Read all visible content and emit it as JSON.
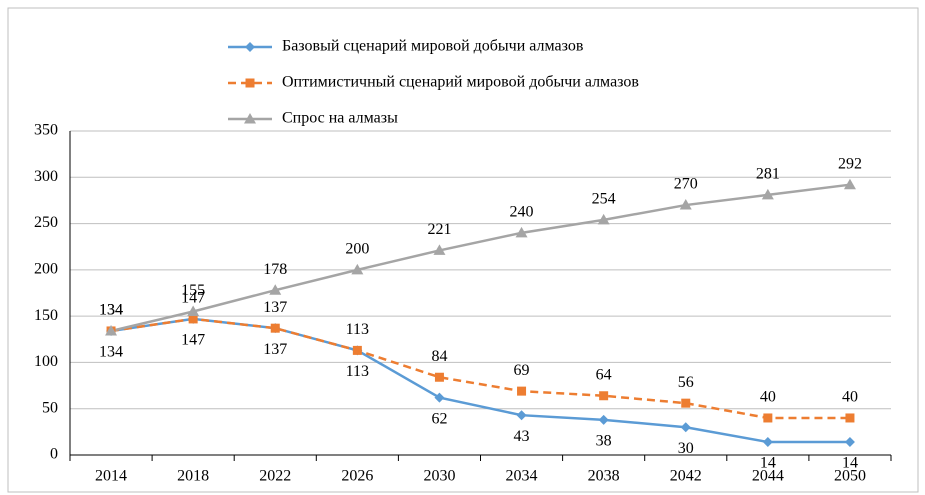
{
  "chart_data": {
    "type": "line",
    "categories": [
      "2014",
      "2018",
      "2022",
      "2026",
      "2030",
      "2034",
      "2038",
      "2042",
      "2044",
      "2050"
    ],
    "series": [
      {
        "name": "Базовый сценарий мировой добычи алмазов",
        "color": "#5b9bd5",
        "marker": "diamond",
        "dash": false,
        "labels": "below",
        "values": [
          134,
          147,
          137,
          113,
          62,
          43,
          38,
          30,
          14,
          14
        ]
      },
      {
        "name": "Оптимистичный сценарий мировой добычи алмазов",
        "color": "#ed7d31",
        "marker": "square",
        "dash": true,
        "labels": "above",
        "values": [
          134,
          147,
          137,
          113,
          84,
          69,
          64,
          56,
          40,
          40
        ]
      },
      {
        "name": "Спрос на алмазы",
        "color": "#a5a5a5",
        "marker": "triangle",
        "dash": false,
        "labels": "above",
        "values": [
          134,
          155,
          178,
          200,
          221,
          240,
          254,
          270,
          281,
          292
        ]
      }
    ],
    "ylim": [
      0,
      350
    ],
    "yticks": [
      0,
      50,
      100,
      150,
      200,
      250,
      300,
      350
    ],
    "grid": true,
    "legend": "top"
  }
}
